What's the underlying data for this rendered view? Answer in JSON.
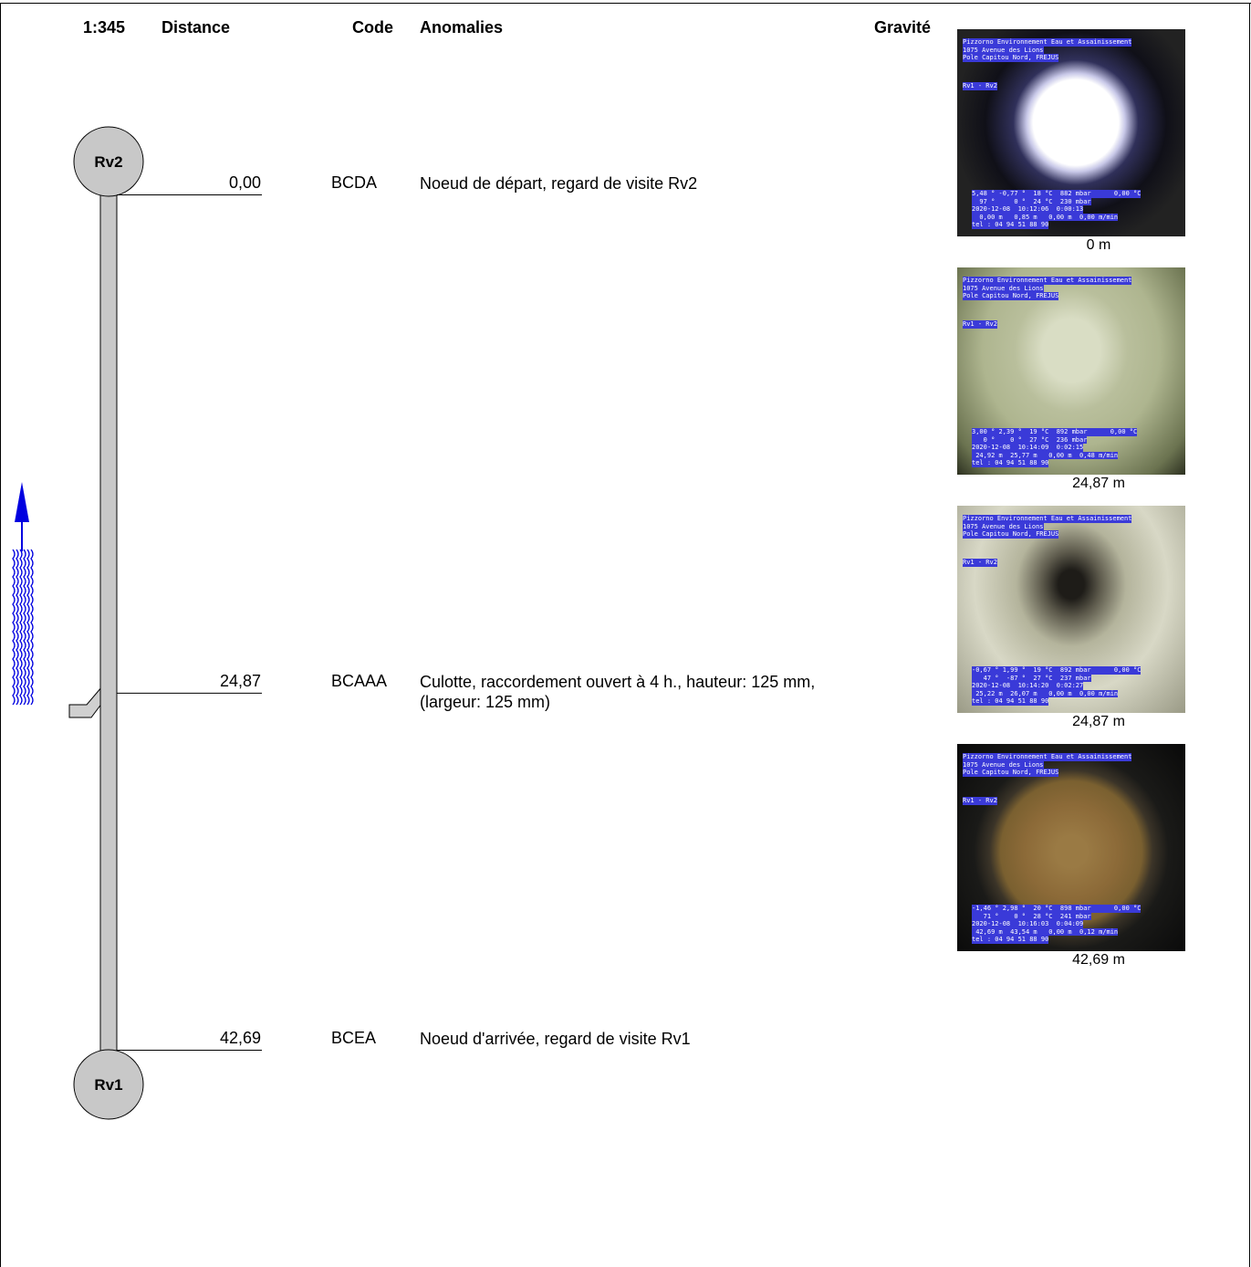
{
  "header": {
    "scale": "1:345",
    "columns": [
      "Distance",
      "Code",
      "Anomalies",
      "Gravité"
    ]
  },
  "nodes": {
    "start": "Rv2",
    "end": "Rv1"
  },
  "entries": [
    {
      "distance": {
        "value": 0,
        "label": "0,00"
      },
      "code": "BCDA",
      "anomaly": "Noeud de départ, regard de visite Rv2"
    },
    {
      "distance": {
        "value": 24.87,
        "label": "24,87"
      },
      "code": "BCAAA",
      "anomaly": "Culotte, raccordement ouvert à 4 h., hauteur: 125 mm, (largeur: 125 mm)"
    },
    {
      "distance": {
        "value": 42.69,
        "label": "42,69"
      },
      "code": "BCEA",
      "anomaly": "Noeud d'arrivée, regard de visite Rv1"
    }
  ],
  "photos": [
    {
      "caption": "0 m",
      "style": "pipe-open",
      "overlay_top": [
        "Pizzorno Environnement Eau et Assainissement",
        "1075 Avenue des Lions",
        "Pole Capitou Nord, FREJUS"
      ],
      "overlay_section": "Rv1 - Rv2",
      "overlay_bottom": [
        "5,48 ° -0,77 °  18 °C  882 mbar      0,00 °C",
        "  97 °     0 °  24 °C  230 mbar",
        "2020-12-08  10:12:06  0:00:13",
        "  0,00 m   0,85 m   0,00 m  0,00 m/min",
        "tel : 04 94 51 88 90"
      ]
    },
    {
      "caption": "24,87 m",
      "style": "pipe-green",
      "overlay_top": [
        "Pizzorno Environnement Eau et Assainissement",
        "1075 Avenue des Lions",
        "Pole Capitou Nord, FREJUS"
      ],
      "overlay_section": "Rv1 - Rv2",
      "overlay_bottom": [
        "3,00 ° 2,39 °  19 °C  892 mbar      0,00 °C",
        "   0 °    0 °  27 °C  236 mbar",
        "2020-12-08  10:14:09  0:02:15",
        " 24,92 m  25,77 m   0,00 m  0,48 m/min",
        "tel : 04 94 51 88 90"
      ]
    },
    {
      "caption": "24,87 m",
      "style": "pipe-dark",
      "overlay_top": [
        "Pizzorno Environnement Eau et Assainissement",
        "1075 Avenue des Lions",
        "Pole Capitou Nord, FREJUS"
      ],
      "overlay_section": "Rv1 - Rv2",
      "overlay_bottom": [
        "-0,67 ° 1,99 °  19 °C  892 mbar      0,00 °C",
        "   47 °  -87 °  27 °C  237 mbar",
        "2020-12-08  10:14:20  0:02:27",
        " 25,22 m  26,07 m   0,00 m  0,00 m/min",
        "tel : 04 94 51 88 90"
      ]
    },
    {
      "caption": "42,69 m",
      "style": "pipe-cover",
      "overlay_top": [
        "Pizzorno Environnement Eau et Assainissement",
        "1075 Avenue des Lions",
        "Pole Capitou Nord, FREJUS"
      ],
      "overlay_section": "Rv1 - Rv2",
      "overlay_bottom": [
        "-1,46 ° 2,98 °  20 °C  898 mbar      0,00 °C",
        "   71 °    0 °  28 °C  241 mbar",
        "2020-12-08  10:16:03  0:04:09",
        " 42,69 m  43,54 m   0,00 m  0,12 m/min",
        "tel : 04 94 51 88 90"
      ]
    }
  ]
}
